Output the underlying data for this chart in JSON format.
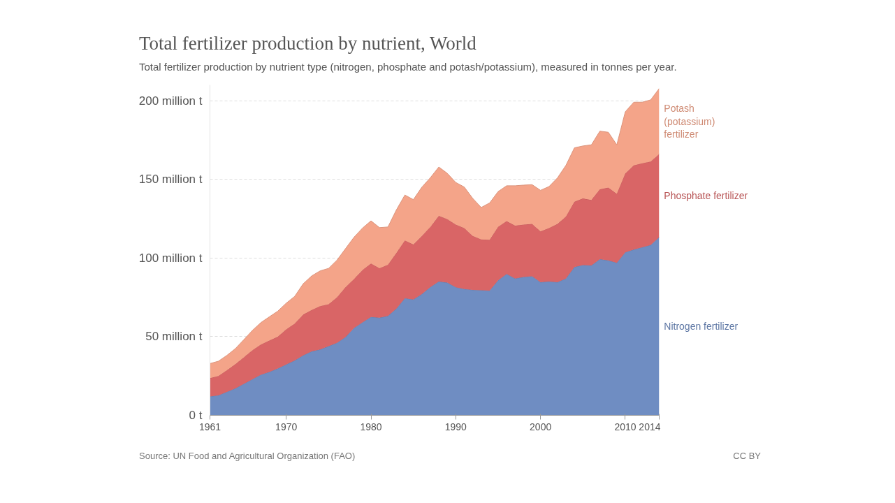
{
  "chart_data": {
    "type": "area",
    "stacked": true,
    "title": "Total fertilizer production by nutrient, World",
    "subtitle": "Total fertilizer production by nutrient type (nitrogen, phosphate and potash/potassium), measured in tonnes per year.",
    "annotations": [
      "Source: UN Food and Agricultural Organization (FAO)",
      "CC BY"
    ],
    "x": [
      1961,
      1962,
      1963,
      1964,
      1965,
      1966,
      1967,
      1968,
      1969,
      1970,
      1971,
      1972,
      1973,
      1974,
      1975,
      1976,
      1977,
      1978,
      1979,
      1980,
      1981,
      1982,
      1983,
      1984,
      1985,
      1986,
      1987,
      1988,
      1989,
      1990,
      1991,
      1992,
      1993,
      1994,
      1995,
      1996,
      1997,
      1998,
      1999,
      2000,
      2001,
      2002,
      2003,
      2004,
      2005,
      2006,
      2007,
      2008,
      2009,
      2010,
      2011,
      2012,
      2013,
      2014
    ],
    "xlim": [
      1961,
      2014
    ],
    "xticks": [
      1961,
      1970,
      1980,
      1990,
      2000,
      2010,
      2014
    ],
    "ylim": [
      0,
      210
    ],
    "yticks": [
      {
        "value": 0,
        "label": "0 t"
      },
      {
        "value": 50,
        "label": "50 million t"
      },
      {
        "value": 100,
        "label": "100 million t"
      },
      {
        "value": 150,
        "label": "150 million t"
      },
      {
        "value": 200,
        "label": "200 million t"
      }
    ],
    "grid": "y",
    "series": [
      {
        "name": "Nitrogen fertilizer",
        "color": "#6f8dc2",
        "values": [
          12.0,
          12.7,
          14.9,
          17.1,
          20.0,
          22.9,
          25.8,
          27.5,
          29.7,
          32.3,
          34.8,
          38.1,
          40.6,
          41.8,
          43.9,
          46.1,
          49.7,
          55.5,
          59.1,
          62.5,
          62.0,
          63.1,
          67.8,
          74.4,
          73.6,
          77.0,
          81.5,
          85.0,
          84.3,
          81.4,
          80.3,
          79.7,
          79.5,
          79.3,
          85.8,
          89.8,
          86.9,
          87.9,
          88.4,
          84.6,
          85.0,
          84.6,
          86.9,
          94.2,
          95.5,
          95.2,
          99.2,
          98.4,
          96.9,
          103.6,
          105.3,
          106.8,
          108.2,
          113.2
        ]
      },
      {
        "name": "Phosphate fertilizer",
        "color": "#d96566",
        "values": [
          11.6,
          12.3,
          13.7,
          15.4,
          16.9,
          18.4,
          19.2,
          20.0,
          20.2,
          22.3,
          23.5,
          25.9,
          26.3,
          27.6,
          26.7,
          28.9,
          31.8,
          31.1,
          33.3,
          33.9,
          31.5,
          32.6,
          35.4,
          36.7,
          34.9,
          37.0,
          38.2,
          41.7,
          40.4,
          39.8,
          38.7,
          34.3,
          32.3,
          32.2,
          34.0,
          33.6,
          33.6,
          33.3,
          33.2,
          32.3,
          34.0,
          37.0,
          39.4,
          41.5,
          42.3,
          41.6,
          44.4,
          46.3,
          43.8,
          50.1,
          53.5,
          53.4,
          53.1,
          52.9
        ]
      },
      {
        "name": "Potash (potassium) fertilizer",
        "color": "#f4a489",
        "values": [
          9.3,
          9.4,
          9.5,
          9.9,
          11.2,
          12.6,
          13.9,
          15.1,
          16.3,
          16.7,
          17.3,
          19.6,
          21.7,
          22.4,
          22.8,
          23.7,
          24.5,
          26.6,
          26.6,
          27.2,
          25.8,
          24.0,
          27.4,
          28.9,
          28.6,
          31.0,
          31.3,
          31.1,
          29.1,
          26.8,
          26.1,
          23.9,
          20.3,
          23.5,
          22.4,
          22.5,
          25.4,
          25.1,
          25.0,
          26.1,
          26.4,
          29.3,
          32.6,
          34.3,
          33.4,
          35.1,
          37.0,
          35.2,
          31.2,
          39.2,
          40.2,
          38.8,
          39.2,
          41.6
        ]
      }
    ]
  }
}
